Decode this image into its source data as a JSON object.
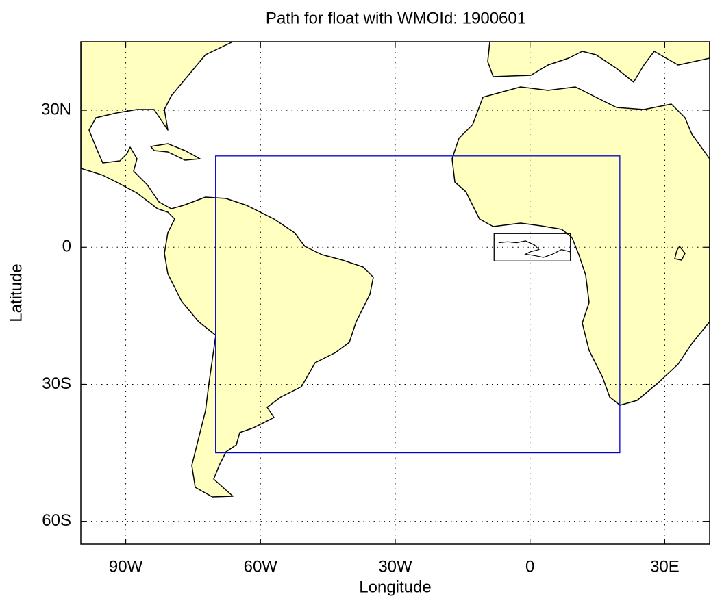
{
  "chart_data": {
    "type": "map",
    "title": "Path for float with WMOId: 1900601",
    "x_label": "Longitude",
    "y_label": "Latitude",
    "xlim": [
      -100,
      40
    ],
    "ylim": [
      -65,
      45
    ],
    "xticks": [
      {
        "value": -90,
        "label": "90W"
      },
      {
        "value": -60,
        "label": "60W"
      },
      {
        "value": -30,
        "label": "30W"
      },
      0,
      {
        "value": 30,
        "label": "30E"
      }
    ],
    "yticks": [
      {
        "value": 30,
        "label": "30N"
      },
      0,
      {
        "value": -30,
        "label": "30S"
      },
      {
        "value": -60,
        "label": "60S"
      }
    ],
    "grid": true,
    "outer_box": {
      "lon": [
        -70,
        20
      ],
      "lat": [
        -45,
        20
      ],
      "color": "#0000cc"
    },
    "inner_box": {
      "lon": [
        -8,
        9
      ],
      "lat": [
        -3,
        3
      ],
      "color": "#000000"
    },
    "float_path": {
      "lon": [
        -7,
        -5,
        -3,
        -1,
        1,
        2,
        0,
        -1,
        1,
        3,
        5,
        7,
        9
      ],
      "lat": [
        1,
        1.2,
        1,
        1.4,
        0.5,
        -0.5,
        -1,
        -1.5,
        -1.8,
        -2.2,
        -1.5,
        -0.5,
        -1
      ],
      "color": "#000000"
    }
  }
}
